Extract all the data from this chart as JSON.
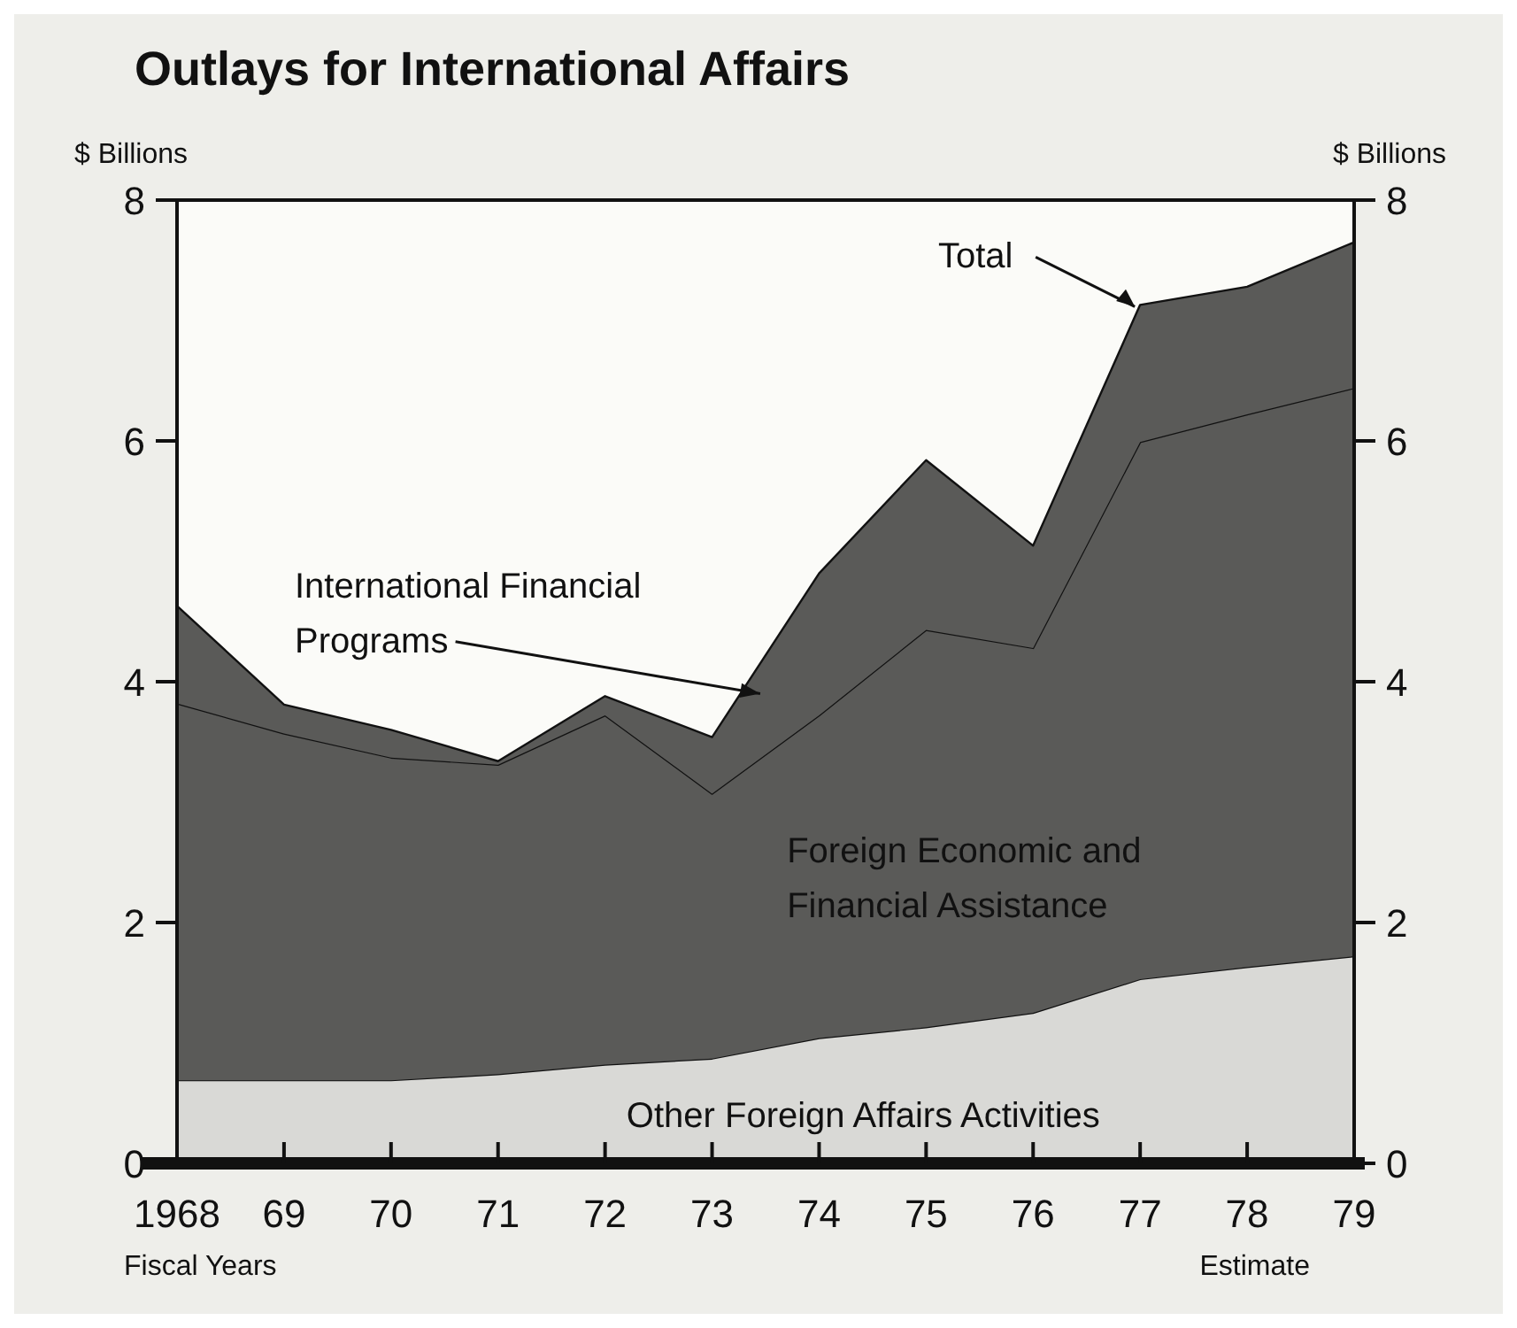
{
  "chart_data": {
    "type": "area",
    "stacked": true,
    "title": "Outlays for International Affairs",
    "ylabel": "$ Billions",
    "y2label": "$ Billions",
    "xlabel": "Fiscal Years",
    "x": [
      1968,
      1969,
      1970,
      1971,
      1972,
      1973,
      1974,
      1975,
      1976,
      1977,
      1978,
      1979
    ],
    "xlim": [
      1968,
      1979
    ],
    "xticks": [
      {
        "value": 1968,
        "label": "1968"
      },
      {
        "value": 1969,
        "label": "69"
      },
      {
        "value": 1970,
        "label": "70"
      },
      {
        "value": 1971,
        "label": "71"
      },
      {
        "value": 1972,
        "label": "72"
      },
      {
        "value": 1973,
        "label": "73"
      },
      {
        "value": 1974,
        "label": "74"
      },
      {
        "value": 1975,
        "label": "75"
      },
      {
        "value": 1976,
        "label": "76"
      },
      {
        "value": 1977,
        "label": "77"
      },
      {
        "value": 1978,
        "label": "78"
      },
      {
        "value": 1979,
        "label": "79"
      }
    ],
    "ylim": [
      0,
      8
    ],
    "yticks": [
      0,
      2,
      4,
      6,
      8
    ],
    "y2lim": [
      0,
      8
    ],
    "y2ticks": [
      0,
      2,
      4,
      6,
      8
    ],
    "series": [
      {
        "name": "Other Foreign Affairs Activities",
        "color": "#d9d9d6",
        "values": [
          0.69,
          0.69,
          0.69,
          0.74,
          0.82,
          0.87,
          1.04,
          1.13,
          1.25,
          1.53,
          1.63,
          1.72
        ]
      },
      {
        "name": "Foreign Economic and Financial Assistance",
        "color": "#5a5a58",
        "values": [
          3.13,
          2.88,
          2.68,
          2.57,
          2.9,
          2.2,
          2.68,
          3.3,
          3.03,
          4.46,
          4.59,
          4.72
        ]
      },
      {
        "name": "International Financial Programs",
        "color": "#5a5a58",
        "values": [
          0.81,
          0.24,
          0.23,
          0.03,
          0.16,
          0.47,
          1.18,
          1.41,
          0.85,
          1.14,
          1.06,
          1.21
        ]
      }
    ],
    "annotations": [
      {
        "text": "Total",
        "x": 1977,
        "y": 7.13
      },
      "Estimate"
    ],
    "grid": false
  }
}
